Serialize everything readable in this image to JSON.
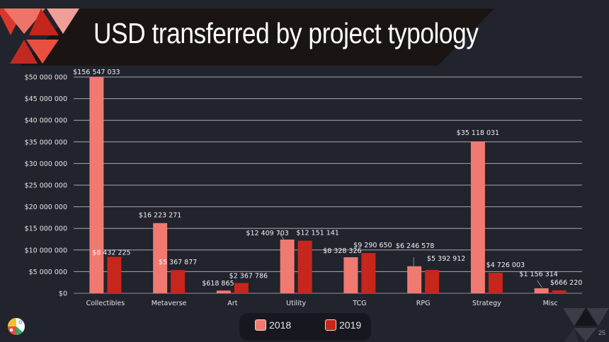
{
  "slide": {
    "title": "USD transferred by project typology",
    "page_number": "25"
  },
  "legend": {
    "items": [
      {
        "label": "2018",
        "color": "#f07a70"
      },
      {
        "label": "2019",
        "color": "#c6261b"
      }
    ]
  },
  "chart_data": {
    "type": "bar",
    "title": "USD transferred by project typology",
    "xlabel": "",
    "ylabel": "",
    "ylim": [
      0,
      50000000
    ],
    "y_ticks": [
      0,
      5000000,
      10000000,
      15000000,
      20000000,
      25000000,
      30000000,
      35000000,
      40000000,
      45000000,
      50000000
    ],
    "y_tick_labels": [
      "$0",
      "$5 000 000",
      "$10 000 000",
      "$15 000 000",
      "$20 000 000",
      "$25 000 000",
      "$30 000 000",
      "$35 000 000",
      "$40 000 000",
      "$45 000 000",
      "$50 000 000"
    ],
    "grid": true,
    "legend_position": "bottom-center",
    "categories": [
      "Collectibles",
      "Metaverse",
      "Art",
      "Utility",
      "TCG",
      "RPG",
      "Strategy",
      "Misc"
    ],
    "series": [
      {
        "name": "2018",
        "color": "#f07a70",
        "values": [
          156547033,
          16223271,
          618865,
          12409703,
          8328326,
          6246578,
          35118031,
          1156314
        ],
        "labels": [
          "$156 547 033",
          "$16 223 271",
          "$618 865",
          "$12 409 703",
          "$8 328 326",
          "$6 246 578",
          "$35 118 031",
          "$1 156 314"
        ]
      },
      {
        "name": "2019",
        "color": "#c6261b",
        "values": [
          8432225,
          5367877,
          2367786,
          12151141,
          9290650,
          5392912,
          4726003,
          666220
        ],
        "labels": [
          "$8 432 225",
          "$5 367 877",
          "$2 367 786",
          "$12 151 141",
          "$9 290 650",
          "$5 392 912",
          "$4 726 003",
          "$666 220"
        ]
      }
    ],
    "note": "Collectibles 2018 bar is clipped at the axis maximum"
  }
}
